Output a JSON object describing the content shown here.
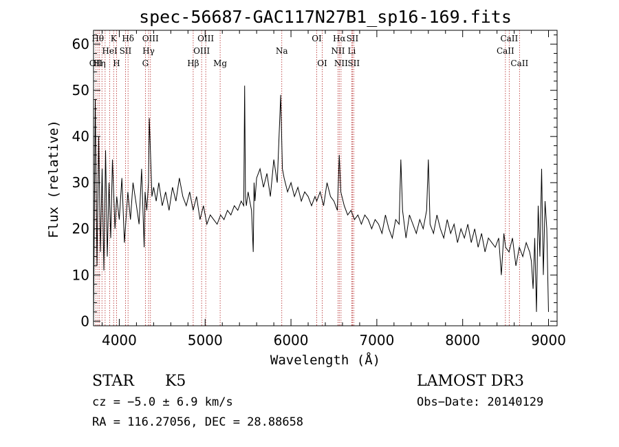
{
  "chart_data": {
    "type": "line",
    "title": "spec-56687-GAC117N27B1_sp16-169.fits",
    "xlabel": "Wavelength (Å)",
    "ylabel": "Flux (relative)",
    "xlim": [
      3700,
      9100
    ],
    "ylim": [
      -1,
      63
    ],
    "xticks": [
      4000,
      5000,
      6000,
      7000,
      8000,
      9000
    ],
    "yticks": [
      0,
      10,
      20,
      30,
      40,
      50,
      60
    ],
    "grid": false,
    "series": [
      {
        "x": [
          3700,
          3720,
          3740,
          3760,
          3780,
          3800,
          3820,
          3840,
          3860,
          3880,
          3900,
          3920,
          3950,
          3970,
          4000,
          4030,
          4060,
          4100,
          4130,
          4160,
          4200,
          4230,
          4260,
          4290,
          4300,
          4320,
          4340,
          4350,
          4380,
          4400,
          4430,
          4460,
          4500,
          4540,
          4580,
          4620,
          4660,
          4700,
          4740,
          4780,
          4820,
          4860,
          4900,
          4940,
          4980,
          5020,
          5060,
          5100,
          5140,
          5180,
          5220,
          5260,
          5300,
          5340,
          5380,
          5420,
          5450,
          5460,
          5470,
          5480,
          5500,
          5540,
          5560,
          5570,
          5580,
          5600,
          5640,
          5680,
          5720,
          5760,
          5800,
          5840,
          5880,
          5900,
          5920,
          5960,
          6000,
          6040,
          6080,
          6120,
          6160,
          6200,
          6240,
          6280,
          6300,
          6340,
          6380,
          6420,
          6460,
          6500,
          6540,
          6563,
          6580,
          6620,
          6660,
          6700,
          6740,
          6780,
          6820,
          6860,
          6900,
          6940,
          6980,
          7020,
          7060,
          7100,
          7140,
          7180,
          7220,
          7260,
          7280,
          7300,
          7340,
          7380,
          7420,
          7460,
          7500,
          7540,
          7580,
          7600,
          7620,
          7660,
          7700,
          7740,
          7780,
          7820,
          7860,
          7900,
          7940,
          7980,
          8020,
          8060,
          8100,
          8140,
          8180,
          8220,
          8260,
          8300,
          8340,
          8380,
          8420,
          8450,
          8480,
          8500,
          8540,
          8580,
          8620,
          8660,
          8700,
          8740,
          8780,
          8800,
          8820,
          8840,
          8860,
          8880,
          8900,
          8920,
          8940,
          8960,
          8980,
          9000
        ],
        "y": [
          0,
          48,
          12,
          40,
          15,
          33,
          11,
          37,
          14,
          30,
          18,
          35,
          20,
          27,
          22,
          31,
          17,
          28,
          22,
          30,
          25,
          21,
          33,
          16,
          28,
          24,
          30,
          44,
          27,
          29,
          26,
          30,
          25,
          28,
          24,
          29,
          26,
          31,
          27,
          25,
          28,
          24,
          27,
          22,
          25,
          21,
          23,
          22,
          21,
          23,
          22,
          24,
          23,
          25,
          24,
          26,
          25,
          51,
          27,
          25,
          28,
          24,
          15,
          30,
          26,
          31,
          33,
          29,
          32,
          27,
          35,
          30,
          49,
          33,
          31,
          28,
          30,
          27,
          29,
          26,
          28,
          27,
          25,
          27,
          26,
          28,
          25,
          30,
          27,
          26,
          24,
          36,
          28,
          25,
          23,
          24,
          22,
          23,
          21,
          23,
          22,
          20,
          22,
          21,
          19,
          23,
          20,
          18,
          22,
          21,
          35,
          24,
          18,
          23,
          21,
          19,
          22,
          20,
          24,
          35,
          21,
          19,
          23,
          20,
          18,
          22,
          19,
          21,
          17,
          20,
          18,
          21,
          17,
          20,
          16,
          19,
          15,
          18,
          17,
          16,
          18,
          10,
          19,
          16,
          15,
          18,
          12,
          16,
          14,
          17,
          15,
          13,
          7,
          18,
          2,
          25,
          14,
          33,
          10,
          26,
          20,
          2
        ]
      }
    ],
    "lines": [
      {
        "x": 3727,
        "label": "OII",
        "row": 2
      },
      {
        "x": 3750,
        "label": "Hθ",
        "row": 0
      },
      {
        "x": 3770,
        "label": "Hη",
        "row": 2
      },
      {
        "x": 3798,
        "label": "",
        "row": -1
      },
      {
        "x": 3835,
        "label": "",
        "row": -1
      },
      {
        "x": 3889,
        "label": "HeI",
        "row": 1
      },
      {
        "x": 3934,
        "label": "K",
        "row": 0
      },
      {
        "x": 3968,
        "label": "H",
        "row": 2
      },
      {
        "x": 4072,
        "label": "SII",
        "row": 1
      },
      {
        "x": 4102,
        "label": "Hδ",
        "row": 0
      },
      {
        "x": 4304,
        "label": "G",
        "row": 2
      },
      {
        "x": 4341,
        "label": "Hγ",
        "row": 1
      },
      {
        "x": 4363,
        "label": "OIII",
        "row": 0
      },
      {
        "x": 4861,
        "label": "Hβ",
        "row": 2
      },
      {
        "x": 4959,
        "label": "OIII",
        "row": 1
      },
      {
        "x": 5007,
        "label": "OIII",
        "row": 0
      },
      {
        "x": 5175,
        "label": "Mg",
        "row": 2
      },
      {
        "x": 5893,
        "label": "Na",
        "row": 1
      },
      {
        "x": 6300,
        "label": "OI",
        "row": 0
      },
      {
        "x": 6364,
        "label": "OI",
        "row": 2
      },
      {
        "x": 6548,
        "label": "NII",
        "row": 1
      },
      {
        "x": 6563,
        "label": "Hα",
        "row": 0
      },
      {
        "x": 6583,
        "label": "NII",
        "row": 2
      },
      {
        "x": 6708,
        "label": "Li",
        "row": 1
      },
      {
        "x": 6716,
        "label": "SII",
        "row": 0
      },
      {
        "x": 6731,
        "label": "SII",
        "row": 2
      },
      {
        "x": 8498,
        "label": "CaII",
        "row": 1
      },
      {
        "x": 8542,
        "label": "CaII",
        "row": 0
      },
      {
        "x": 8662,
        "label": "CaII",
        "row": 2
      }
    ]
  },
  "info": {
    "class": "STAR",
    "subclass": "K5",
    "survey": "LAMOST DR3",
    "cz": "cz = −5.0 ± 6.9 km/s",
    "obs_date": "Obs−Date: 20140129",
    "radec": "RA = 116.27056, DEC =  28.88658"
  },
  "colors": {
    "spectrum": "#000000",
    "line_marker": "#b22222",
    "axis": "#000000"
  }
}
